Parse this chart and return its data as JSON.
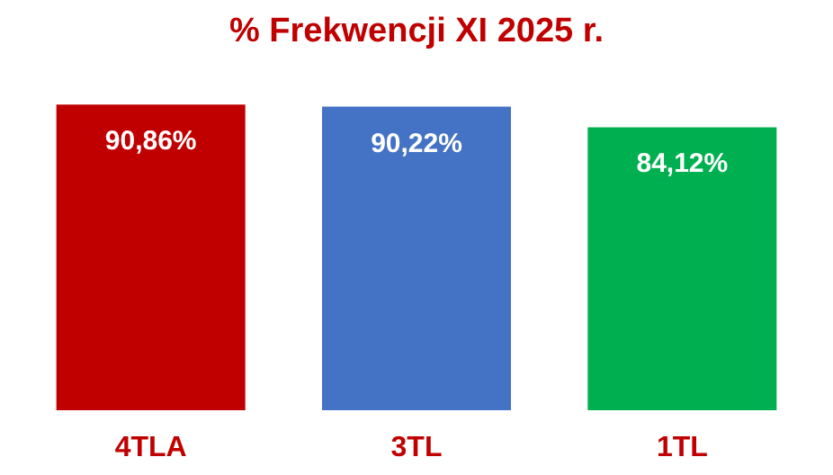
{
  "chart_data": {
    "type": "bar",
    "title": "% Frekwencji XI 2025 r.",
    "categories": [
      "4TLA",
      "3TL",
      "1TL"
    ],
    "values": [
      90.86,
      90.22,
      84.12
    ],
    "colors": [
      "#c00000",
      "#4472c4",
      "#00b050"
    ],
    "value_labels": [
      "90,86%",
      "90,22%",
      "84,12%"
    ],
    "grid": false,
    "tick_labels": "x"
  }
}
